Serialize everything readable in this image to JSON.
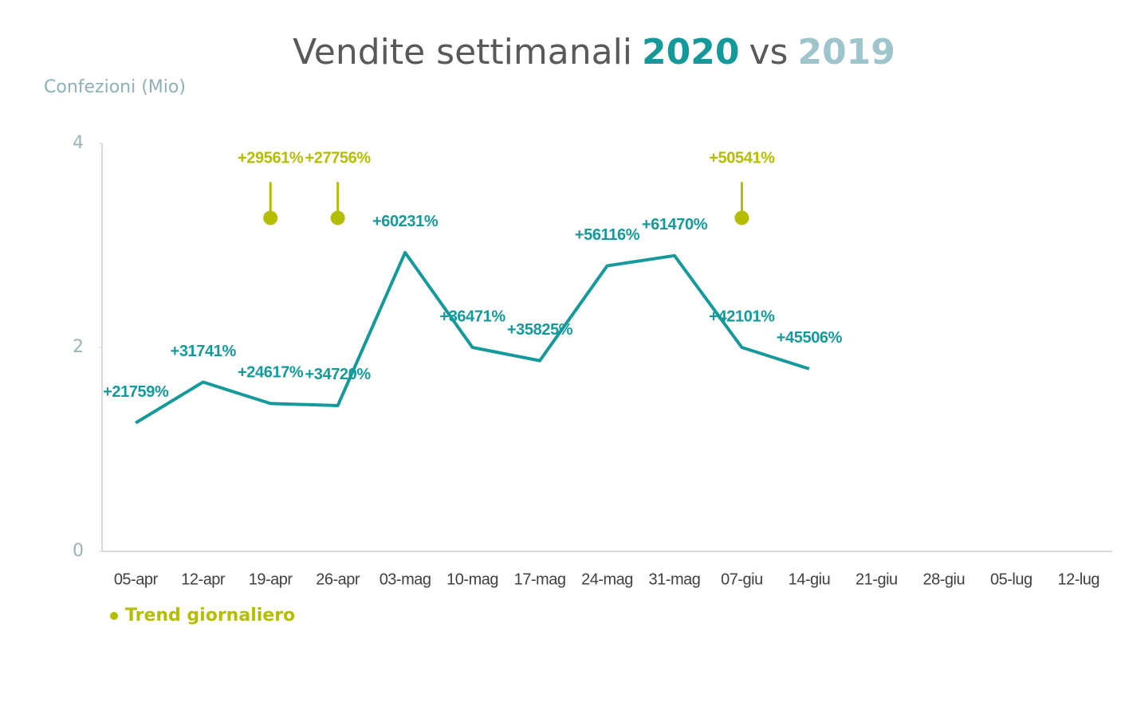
{
  "chart_data": {
    "type": "line",
    "title_parts": [
      {
        "text": "Vendite settimanali",
        "color": "#595959"
      },
      {
        "text": "2020",
        "color": "#13999a"
      },
      {
        "text": "vs",
        "color": "#595959"
      },
      {
        "text": "2019",
        "color": "#9ec5cc"
      }
    ],
    "y_label": "Confezioni (Mio)",
    "categories": [
      "05-apr",
      "12-apr",
      "19-apr",
      "26-apr",
      "03-mag",
      "10-mag",
      "17-mag",
      "24-mag",
      "31-mag",
      "07-giu",
      "14-giu",
      "21-giu",
      "28-giu",
      "05-lug",
      "12-lug"
    ],
    "series": [
      {
        "name": "2020",
        "color": "#15999a",
        "values": [
          1.26,
          1.66,
          1.45,
          1.43,
          2.93,
          2.0,
          1.87,
          2.8,
          2.9,
          2.0,
          1.79,
          null,
          null,
          null,
          null
        ],
        "labels": [
          "+21759%",
          "+31741%",
          "+24617%",
          "+34720%",
          "+60231%",
          "+36471%",
          "+35825%",
          "+56116%",
          "+61470%",
          "+42101%",
          "+45506%",
          null,
          null,
          null,
          null
        ]
      },
      {
        "name": "Trend giornaliero",
        "color": "#b5bd00",
        "values": [
          null,
          null,
          3.27,
          3.27,
          null,
          null,
          null,
          null,
          null,
          3.27,
          null,
          null,
          null,
          null,
          null
        ],
        "labels": [
          null,
          null,
          "+29561%",
          "+27756%",
          null,
          null,
          null,
          null,
          null,
          "+50541%",
          null,
          null,
          null,
          null,
          null
        ]
      }
    ],
    "ylim": [
      0,
      4
    ],
    "yticks": [
      0,
      2,
      4
    ]
  }
}
